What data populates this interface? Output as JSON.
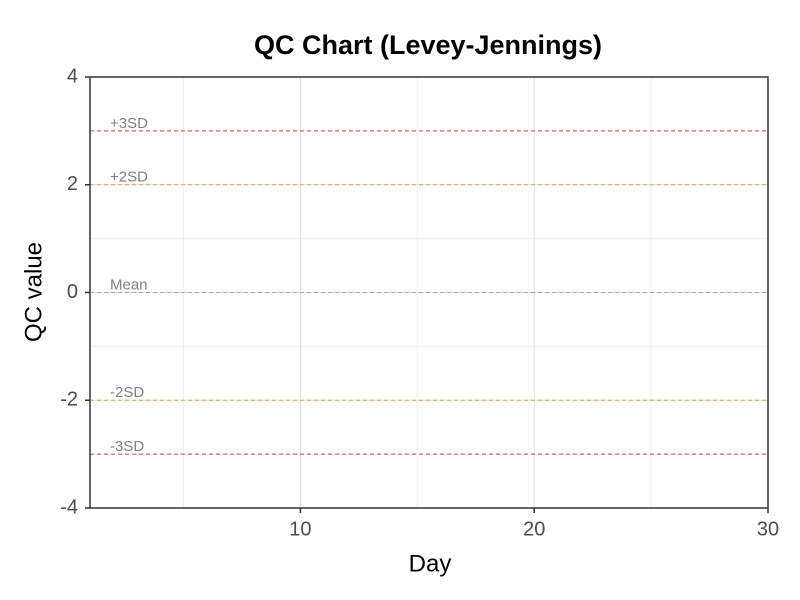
{
  "chart_data": {
    "type": "line",
    "title": "QC Chart (Levey-Jennings)",
    "x_label": "Day",
    "y_label": "QC value",
    "xlim": [
      1,
      30
    ],
    "xticks": [
      10,
      20,
      30
    ],
    "minor_xticks": [
      5,
      15,
      25
    ],
    "ylim": [
      -4,
      4
    ],
    "yticks": [
      -4,
      -2,
      0,
      2,
      4
    ],
    "minor_yticks": [
      -3,
      -1,
      1,
      3
    ],
    "grid": true,
    "reference_lines": [
      {
        "label": "+3SD",
        "value": 3,
        "color": "#c8464b"
      },
      {
        "label": "+2SD",
        "value": 2,
        "color": "#e3a44a"
      },
      {
        "label": "Mean",
        "value": 0,
        "color": "#a6a6a6"
      },
      {
        "label": "-2SD",
        "value": -2,
        "color": "#e3a44a"
      },
      {
        "label": "-3SD",
        "value": -3,
        "color": "#c8464b"
      }
    ]
  }
}
